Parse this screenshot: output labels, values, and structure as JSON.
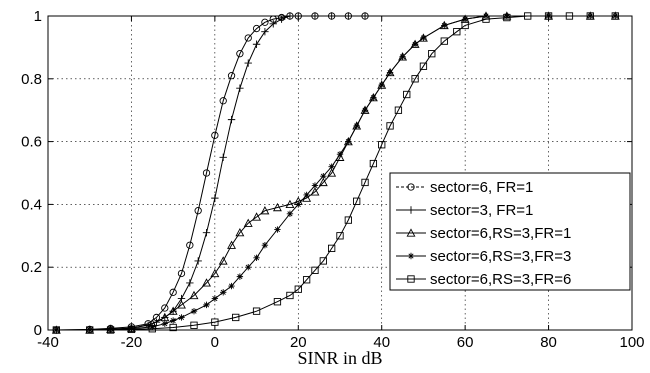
{
  "chart_data": {
    "type": "line",
    "xlabel": "SINR in dB",
    "ylabel": "",
    "xlim": [
      -40,
      100
    ],
    "ylim": [
      0,
      1
    ],
    "xticks": [
      -40,
      -20,
      0,
      20,
      40,
      60,
      80,
      100
    ],
    "yticks": [
      0,
      0.2,
      0.4,
      0.6,
      0.8,
      1
    ],
    "grid": true,
    "legend_position": "center-right",
    "series": [
      {
        "name": "sector=6,  FR=1",
        "marker": "circle",
        "x": [
          -38,
          -30,
          -25,
          -20,
          -16,
          -14,
          -12,
          -10,
          -8,
          -6,
          -4,
          -2,
          0,
          2,
          4,
          6,
          8,
          10,
          12,
          14,
          16,
          18,
          20,
          24,
          28,
          32,
          36
        ],
        "y": [
          0,
          0.002,
          0.005,
          0.01,
          0.02,
          0.04,
          0.07,
          0.12,
          0.18,
          0.27,
          0.38,
          0.5,
          0.62,
          0.73,
          0.81,
          0.88,
          0.93,
          0.96,
          0.98,
          0.99,
          0.995,
          1,
          1,
          1,
          1,
          1,
          1
        ]
      },
      {
        "name": "sector=3,  FR=1",
        "marker": "plus",
        "x": [
          -38,
          -30,
          -25,
          -20,
          -16,
          -14,
          -12,
          -10,
          -8,
          -6,
          -4,
          -2,
          0,
          2,
          4,
          6,
          8,
          10,
          12,
          14,
          16,
          18,
          20,
          24,
          28,
          32,
          36
        ],
        "y": [
          0,
          0.001,
          0.003,
          0.006,
          0.015,
          0.025,
          0.04,
          0.06,
          0.1,
          0.15,
          0.22,
          0.31,
          0.42,
          0.55,
          0.67,
          0.77,
          0.85,
          0.91,
          0.95,
          0.975,
          0.99,
          1,
          1,
          1,
          1,
          1,
          1
        ]
      },
      {
        "name": "sector=6,RS=3,FR=1",
        "marker": "triangle",
        "x": [
          -38,
          -30,
          -25,
          -20,
          -15,
          -12,
          -10,
          -8,
          -5,
          -2,
          0,
          2,
          4,
          6,
          8,
          10,
          12,
          15,
          18,
          20,
          22,
          24,
          26,
          28,
          30,
          32,
          34,
          36,
          38,
          40,
          42,
          45,
          48,
          50,
          55,
          60,
          65,
          70,
          80,
          90,
          96
        ],
        "y": [
          0,
          0,
          0.002,
          0.005,
          0.02,
          0.04,
          0.06,
          0.08,
          0.11,
          0.15,
          0.18,
          0.22,
          0.27,
          0.31,
          0.34,
          0.36,
          0.38,
          0.39,
          0.4,
          0.41,
          0.42,
          0.44,
          0.47,
          0.5,
          0.55,
          0.6,
          0.65,
          0.7,
          0.74,
          0.78,
          0.82,
          0.87,
          0.91,
          0.93,
          0.97,
          0.99,
          1,
          1,
          1,
          1,
          1
        ]
      },
      {
        "name": "sector=6,RS=3,FR=3",
        "marker": "star",
        "x": [
          -38,
          -30,
          -25,
          -20,
          -15,
          -12,
          -10,
          -8,
          -5,
          -2,
          0,
          2,
          4,
          6,
          8,
          10,
          12,
          15,
          18,
          20,
          22,
          24,
          26,
          28,
          30,
          32,
          34,
          36,
          38,
          40,
          42,
          45,
          48,
          50,
          55,
          60,
          65,
          70,
          80,
          90,
          96
        ],
        "y": [
          0,
          0,
          0.002,
          0.004,
          0.01,
          0.02,
          0.03,
          0.04,
          0.06,
          0.08,
          0.1,
          0.12,
          0.14,
          0.17,
          0.2,
          0.23,
          0.27,
          0.32,
          0.37,
          0.4,
          0.43,
          0.46,
          0.49,
          0.52,
          0.56,
          0.6,
          0.65,
          0.7,
          0.74,
          0.78,
          0.82,
          0.87,
          0.91,
          0.93,
          0.97,
          0.99,
          1,
          1,
          1,
          1,
          1
        ]
      },
      {
        "name": "sector=6,RS=3,FR=6",
        "marker": "square",
        "x": [
          -38,
          -30,
          -25,
          -20,
          -15,
          -10,
          -5,
          0,
          5,
          10,
          15,
          18,
          20,
          22,
          24,
          26,
          28,
          30,
          32,
          34,
          36,
          38,
          40,
          42,
          44,
          46,
          48,
          50,
          52,
          55,
          58,
          60,
          65,
          70,
          75,
          80,
          85,
          90,
          96
        ],
        "y": [
          0,
          0,
          0,
          0.002,
          0.004,
          0.008,
          0.015,
          0.025,
          0.04,
          0.06,
          0.09,
          0.11,
          0.13,
          0.16,
          0.19,
          0.22,
          0.26,
          0.3,
          0.35,
          0.41,
          0.47,
          0.53,
          0.59,
          0.65,
          0.7,
          0.75,
          0.8,
          0.84,
          0.88,
          0.92,
          0.95,
          0.97,
          0.99,
          0.995,
          1,
          1,
          1,
          1,
          1
        ]
      }
    ]
  }
}
